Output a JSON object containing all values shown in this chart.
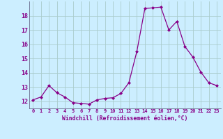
{
  "x": [
    0,
    1,
    2,
    3,
    4,
    5,
    6,
    7,
    8,
    9,
    10,
    11,
    12,
    13,
    14,
    15,
    16,
    17,
    18,
    19,
    20,
    21,
    22,
    23
  ],
  "y": [
    12.1,
    12.3,
    13.1,
    12.6,
    12.3,
    11.9,
    11.85,
    11.8,
    12.1,
    12.2,
    12.25,
    12.55,
    13.3,
    15.5,
    18.5,
    18.55,
    18.6,
    17.0,
    17.6,
    15.85,
    15.1,
    14.05,
    13.3,
    13.1
  ],
  "xlabel": "Windchill (Refroidissement éolien,°C)",
  "ylim": [
    11.5,
    19.0
  ],
  "xlim": [
    -0.5,
    23.5
  ],
  "line_color": "#880088",
  "marker_color": "#880088",
  "bg_color": "#cceeff",
  "grid_color": "#aacccc",
  "tick_color": "#880088",
  "label_color": "#880088",
  "xticks": [
    0,
    1,
    2,
    3,
    4,
    5,
    6,
    7,
    8,
    9,
    10,
    11,
    12,
    13,
    14,
    15,
    16,
    17,
    18,
    19,
    20,
    21,
    22,
    23
  ],
  "yticks": [
    12,
    13,
    14,
    15,
    16,
    17,
    18
  ]
}
